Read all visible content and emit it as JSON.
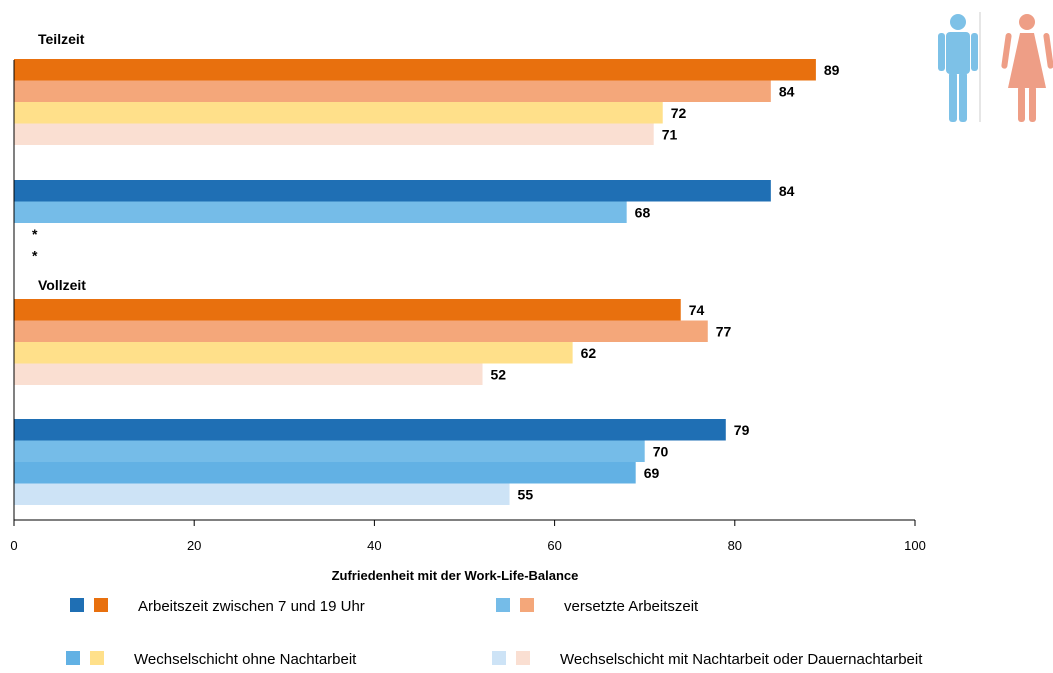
{
  "chart_data": {
    "type": "bar",
    "orientation": "horizontal",
    "xlabel": "Zufriedenheit mit der Work-Life-Balance",
    "xlim": [
      0,
      100
    ],
    "x_ticks": [
      0,
      20,
      40,
      60,
      80,
      100
    ],
    "grid": false,
    "groups": [
      {
        "label": "Teilzeit",
        "subgroups": [
          {
            "gender": "female",
            "bars": [
              {
                "category": "Arbeitszeit zwischen 7 und 19 Uhr",
                "value": 89,
                "label": "89",
                "color": "#E8700E"
              },
              {
                "category": "versetzte Arbeitszeit",
                "value": 84,
                "label": "84",
                "color": "#F4A77A"
              },
              {
                "category": "Wechselschicht ohne Nachtarbeit",
                "value": 72,
                "label": "72",
                "color": "#FFE08A"
              },
              {
                "category": "Wechselschicht mit Nachtarbeit oder Dauernachtarbeit",
                "value": 71,
                "label": "71",
                "color": "#FADFD2"
              }
            ]
          },
          {
            "gender": "male",
            "bars": [
              {
                "category": "Arbeitszeit zwischen 7 und 19 Uhr",
                "value": 84,
                "label": "84",
                "color": "#1F6FB4"
              },
              {
                "category": "versetzte Arbeitszeit",
                "value": 68,
                "label": "68",
                "color": "#75BCE8"
              },
              {
                "category": "Wechselschicht ohne Nachtarbeit",
                "value": null,
                "label": "*",
                "color": "#62B1E4"
              },
              {
                "category": "Wechselschicht mit Nachtarbeit oder Dauernachtarbeit",
                "value": null,
                "label": "*",
                "color": "#CDE3F6"
              }
            ]
          }
        ]
      },
      {
        "label": "Vollzeit",
        "subgroups": [
          {
            "gender": "female",
            "bars": [
              {
                "category": "Arbeitszeit zwischen 7 und 19 Uhr",
                "value": 74,
                "label": "74",
                "color": "#E8700E"
              },
              {
                "category": "versetzte Arbeitszeit",
                "value": 77,
                "label": "77",
                "color": "#F4A77A"
              },
              {
                "category": "Wechselschicht ohne Nachtarbeit",
                "value": 62,
                "label": "62",
                "color": "#FFE08A"
              },
              {
                "category": "Wechselschicht mit Nachtarbeit oder Dauernachtarbeit",
                "value": 52,
                "label": "52",
                "color": "#FADFD2"
              }
            ]
          },
          {
            "gender": "male",
            "bars": [
              {
                "category": "Arbeitszeit zwischen 7 und 19 Uhr",
                "value": 79,
                "label": "79",
                "color": "#1F6FB4"
              },
              {
                "category": "versetzte Arbeitszeit",
                "value": 70,
                "label": "70",
                "color": "#75BCE8"
              },
              {
                "category": "Wechselschicht ohne Nachtarbeit",
                "value": 69,
                "label": "69",
                "color": "#62B1E4"
              },
              {
                "category": "Wechselschicht mit Nachtarbeit oder Dauernachtarbeit",
                "value": 55,
                "label": "55",
                "color": "#CDE3F6"
              }
            ]
          }
        ]
      }
    ],
    "legend": {
      "placement": "bottom",
      "entries": [
        {
          "label": "Arbeitszeit zwischen 7 und 19 Uhr",
          "colors": [
            "#1F6FB4",
            "#E8700E"
          ]
        },
        {
          "label": "versetzte Arbeitszeit",
          "colors": [
            "#75BCE8",
            "#F4A77A"
          ]
        },
        {
          "label": "Wechselschicht ohne Nachtarbeit",
          "colors": [
            "#62B1E4",
            "#FFE08A"
          ]
        },
        {
          "label": "Wechselschicht mit Nachtarbeit oder Dauernachtarbeit",
          "colors": [
            "#CDE3F6",
            "#FADFD2"
          ]
        }
      ]
    },
    "icons": [
      {
        "name": "male-figure-icon",
        "color": "#7DC1E7"
      },
      {
        "name": "female-figure-icon",
        "color": "#EE9E86"
      }
    ]
  }
}
